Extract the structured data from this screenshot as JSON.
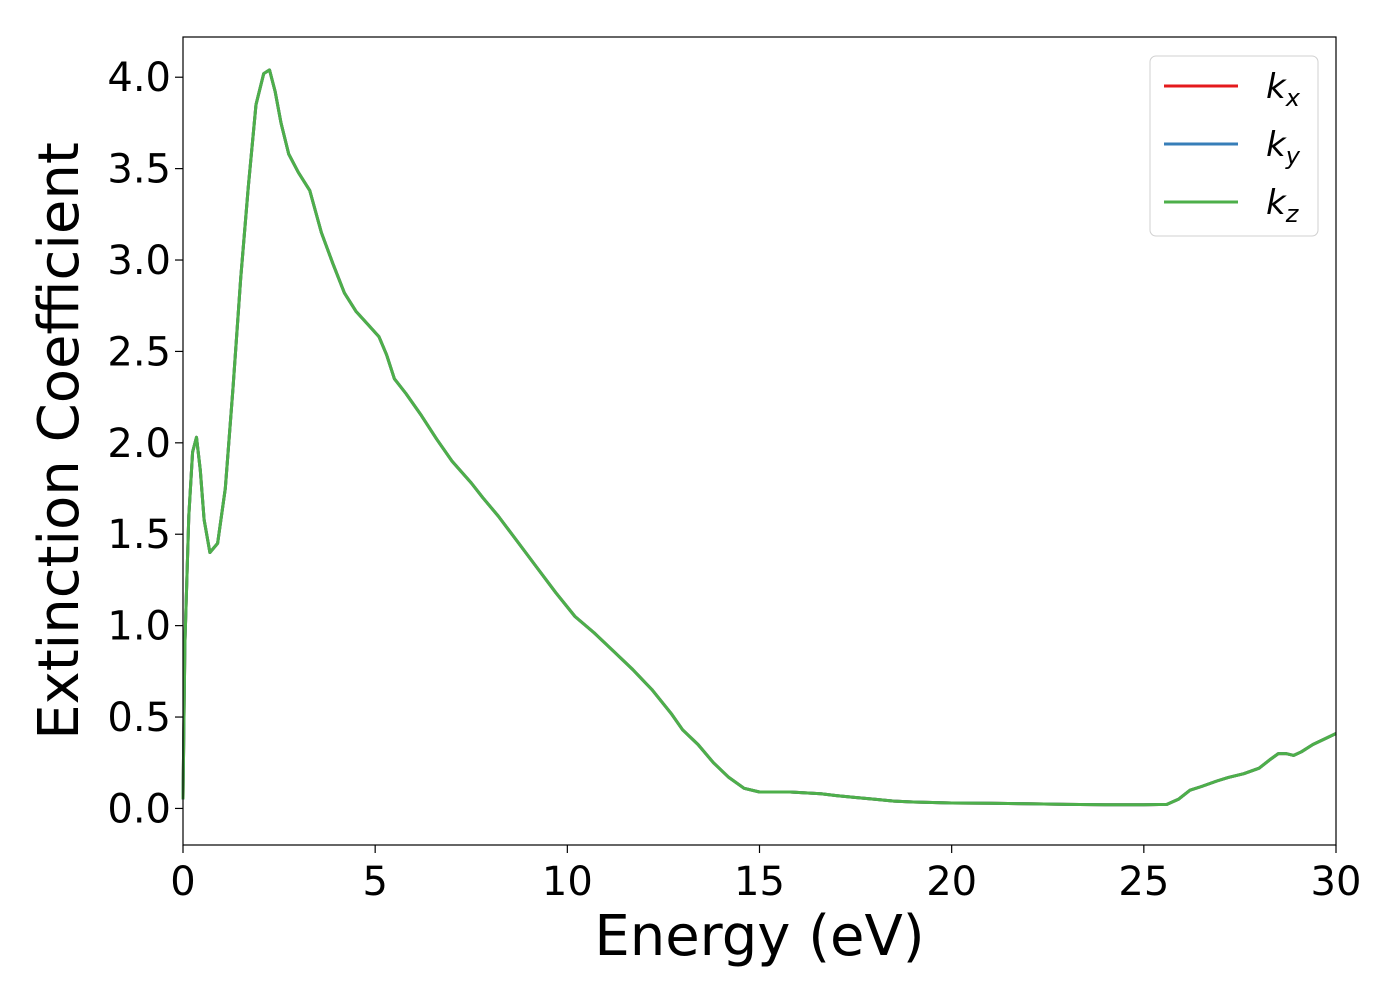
{
  "chart_data": {
    "type": "line",
    "title": "",
    "xlabel": "Energy (eV)",
    "ylabel": "Extinction Coefficient",
    "xlim": [
      0,
      30
    ],
    "ylim": [
      -0.2,
      4.22
    ],
    "xticks": [
      "0",
      "5",
      "10",
      "15",
      "20",
      "25",
      "30"
    ],
    "yticks": [
      "0.0",
      "0.5",
      "1.0",
      "1.5",
      "2.0",
      "2.5",
      "3.0",
      "3.5",
      "4.0"
    ],
    "grid": false,
    "legend_position": "top-right",
    "x": [
      0,
      0.05,
      0.15,
      0.25,
      0.35,
      0.45,
      0.55,
      0.7,
      0.9,
      1.1,
      1.3,
      1.5,
      1.7,
      1.9,
      2.1,
      2.25,
      2.4,
      2.55,
      2.75,
      3.0,
      3.3,
      3.6,
      3.9,
      4.2,
      4.5,
      4.8,
      5.1,
      5.3,
      5.5,
      5.8,
      6.2,
      6.6,
      7.0,
      7.5,
      7.8,
      8.2,
      8.7,
      9.2,
      9.7,
      10.2,
      10.7,
      11.2,
      11.7,
      12.2,
      12.7,
      13.0,
      13.4,
      13.8,
      14.2,
      14.6,
      15.0,
      15.4,
      15.8,
      16.2,
      16.6,
      17.0,
      17.5,
      18.0,
      18.5,
      19.0,
      20.0,
      21.0,
      22.0,
      23.0,
      24.0,
      25.0,
      25.6,
      25.9,
      26.2,
      26.5,
      26.9,
      27.2,
      27.6,
      28.0,
      28.3,
      28.5,
      28.7,
      28.9,
      29.1,
      29.4,
      29.7,
      30.0
    ],
    "series": [
      {
        "name": "k_x",
        "color": "#e41a1c",
        "values": [
          0.05,
          0.9,
          1.6,
          1.95,
          2.03,
          1.85,
          1.58,
          1.4,
          1.45,
          1.75,
          2.3,
          2.9,
          3.4,
          3.85,
          4.02,
          4.04,
          3.92,
          3.75,
          3.58,
          3.48,
          3.38,
          3.15,
          2.98,
          2.82,
          2.72,
          2.65,
          2.58,
          2.48,
          2.35,
          2.27,
          2.15,
          2.02,
          1.9,
          1.78,
          1.7,
          1.6,
          1.46,
          1.32,
          1.18,
          1.05,
          0.96,
          0.86,
          0.76,
          0.65,
          0.52,
          0.43,
          0.35,
          0.25,
          0.17,
          0.11,
          0.09,
          0.09,
          0.09,
          0.085,
          0.08,
          0.07,
          0.06,
          0.05,
          0.04,
          0.035,
          0.03,
          0.028,
          0.026,
          0.022,
          0.02,
          0.02,
          0.022,
          0.05,
          0.1,
          0.12,
          0.15,
          0.17,
          0.19,
          0.22,
          0.27,
          0.3,
          0.3,
          0.29,
          0.31,
          0.35,
          0.38,
          0.41
        ]
      },
      {
        "name": "k_y",
        "color": "#377eb8",
        "values": [
          0.05,
          0.9,
          1.6,
          1.95,
          2.03,
          1.85,
          1.58,
          1.4,
          1.45,
          1.75,
          2.3,
          2.9,
          3.4,
          3.85,
          4.02,
          4.04,
          3.92,
          3.75,
          3.58,
          3.48,
          3.38,
          3.15,
          2.98,
          2.82,
          2.72,
          2.65,
          2.58,
          2.48,
          2.35,
          2.27,
          2.15,
          2.02,
          1.9,
          1.78,
          1.7,
          1.6,
          1.46,
          1.32,
          1.18,
          1.05,
          0.96,
          0.86,
          0.76,
          0.65,
          0.52,
          0.43,
          0.35,
          0.25,
          0.17,
          0.11,
          0.09,
          0.09,
          0.09,
          0.085,
          0.08,
          0.07,
          0.06,
          0.05,
          0.04,
          0.035,
          0.03,
          0.028,
          0.026,
          0.022,
          0.02,
          0.02,
          0.022,
          0.05,
          0.1,
          0.12,
          0.15,
          0.17,
          0.19,
          0.22,
          0.27,
          0.3,
          0.3,
          0.29,
          0.31,
          0.35,
          0.38,
          0.41
        ]
      },
      {
        "name": "k_z",
        "color": "#4daf4a",
        "values": [
          0.05,
          0.9,
          1.6,
          1.95,
          2.03,
          1.85,
          1.58,
          1.4,
          1.45,
          1.75,
          2.3,
          2.9,
          3.4,
          3.85,
          4.02,
          4.04,
          3.92,
          3.75,
          3.58,
          3.48,
          3.38,
          3.15,
          2.98,
          2.82,
          2.72,
          2.65,
          2.58,
          2.48,
          2.35,
          2.27,
          2.15,
          2.02,
          1.9,
          1.78,
          1.7,
          1.6,
          1.46,
          1.32,
          1.18,
          1.05,
          0.96,
          0.86,
          0.76,
          0.65,
          0.52,
          0.43,
          0.35,
          0.25,
          0.17,
          0.11,
          0.09,
          0.09,
          0.09,
          0.085,
          0.08,
          0.07,
          0.06,
          0.05,
          0.04,
          0.035,
          0.03,
          0.028,
          0.026,
          0.022,
          0.02,
          0.02,
          0.022,
          0.05,
          0.1,
          0.12,
          0.15,
          0.17,
          0.19,
          0.22,
          0.27,
          0.3,
          0.3,
          0.29,
          0.31,
          0.35,
          0.38,
          0.41
        ]
      }
    ],
    "legend": [
      {
        "base": "k",
        "sub": "x",
        "color": "#e41a1c"
      },
      {
        "base": "k",
        "sub": "y",
        "color": "#377eb8"
      },
      {
        "base": "k",
        "sub": "z",
        "color": "#4daf4a"
      }
    ]
  }
}
